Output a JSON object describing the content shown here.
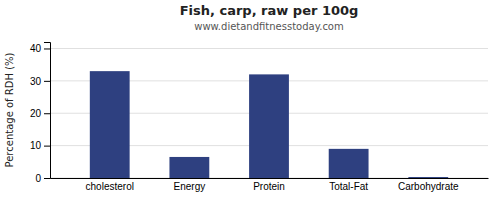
{
  "chart_data": {
    "type": "bar",
    "title": "Fish, carp, raw per 100g",
    "subtitle": "www.dietandfitnesstoday.com",
    "categories": [
      "cholesterol",
      "Energy",
      "Protein",
      "Total-Fat",
      "Carbohydrate"
    ],
    "values": [
      33.0,
      6.5,
      32.0,
      9.0,
      0.3
    ],
    "color": "#2e4080",
    "ylabel": "Percentage of RDH (%)",
    "ylim": [
      0,
      42
    ],
    "yticks": [
      0,
      10,
      20,
      30,
      40
    ],
    "grid": true
  }
}
